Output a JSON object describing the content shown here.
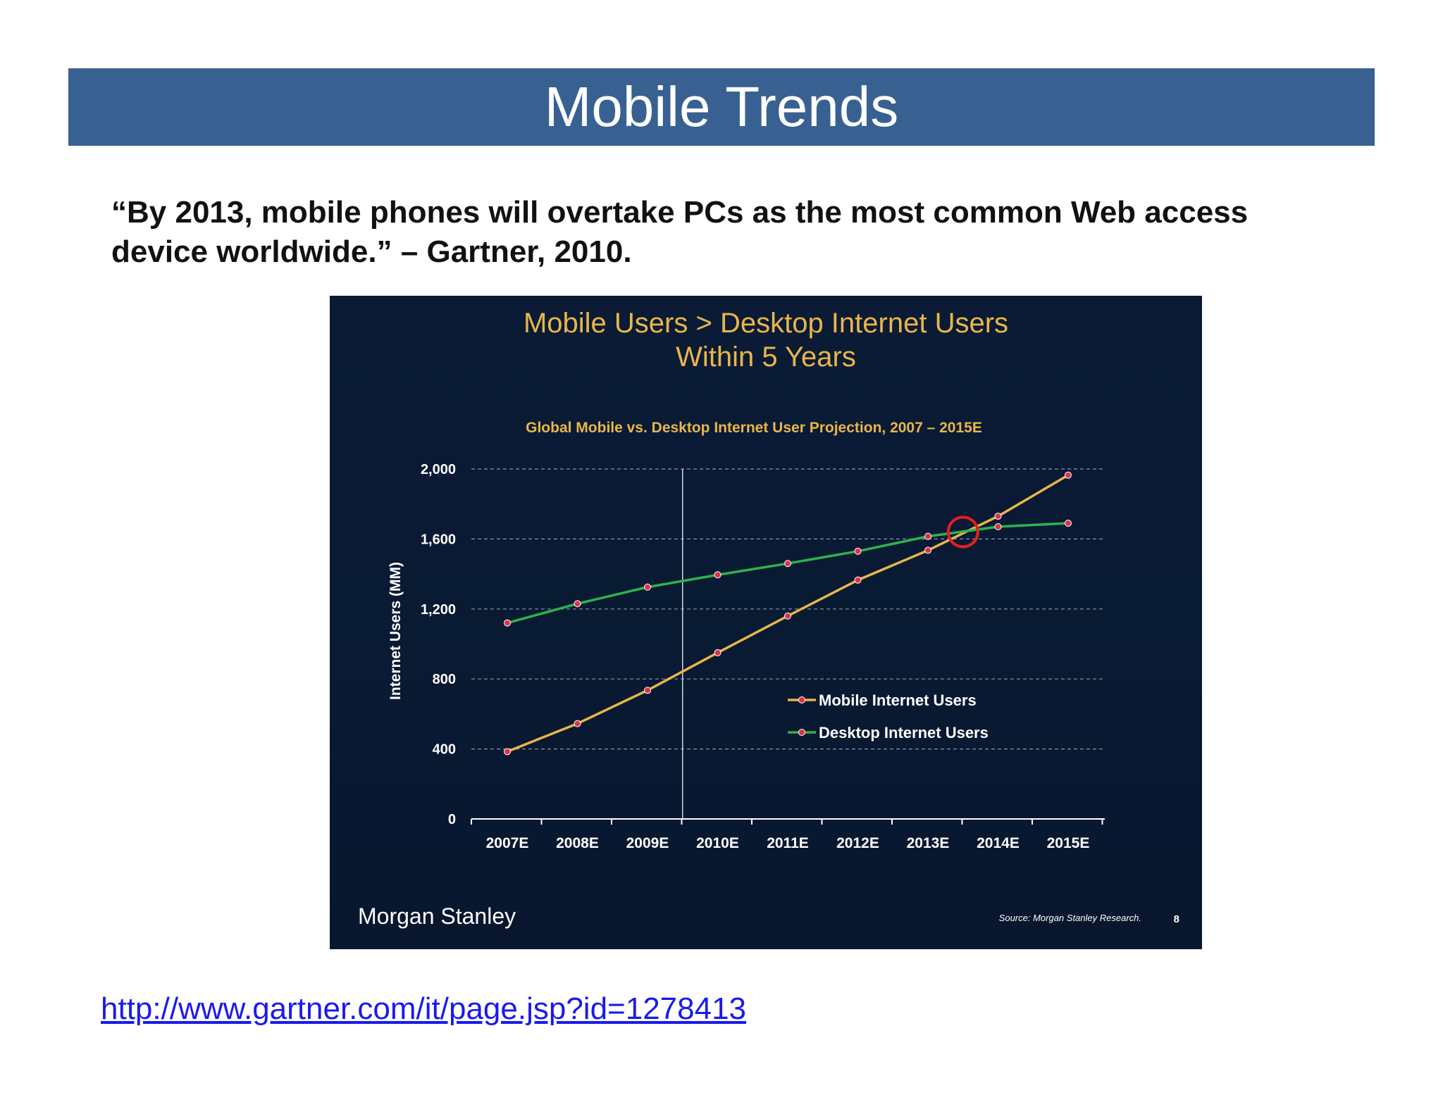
{
  "slide": {
    "title": "Mobile Trends",
    "quote": "“By 2013, mobile phones will overtake PCs as the most common Web access device worldwide.” – Gartner, 2010.",
    "link": "http://www.gartner.com/it/page.jsp?id=1278413"
  },
  "colors": {
    "title_bar": "#386192",
    "chart_bg": "#0b1b35",
    "mobile_line": "#e8b64a",
    "desktop_line": "#2db34f",
    "marker": "#e0304a",
    "heading": "#e8b64a",
    "highlight_circle": "#e32020"
  },
  "chart_data": {
    "type": "line",
    "heading": "Mobile Users > Desktop Internet Users",
    "heading2": "Within 5 Years",
    "title": "Global Mobile vs. Desktop Internet User Projection, 2007 – 2015E",
    "xlabel": "",
    "ylabel": "Internet Users (MM)",
    "ylim": [
      0,
      2000
    ],
    "yticks": [
      "0",
      "400",
      "800",
      "1,200",
      "1,600",
      "2,000"
    ],
    "ytick_values": [
      0,
      400,
      800,
      1200,
      1600,
      2000
    ],
    "categories": [
      "2007E",
      "2008E",
      "2009E",
      "2010E",
      "2011E",
      "2012E",
      "2013E",
      "2014E",
      "2015E"
    ],
    "series": [
      {
        "name": "Mobile Internet Users",
        "values": [
          385,
          545,
          735,
          950,
          1160,
          1365,
          1535,
          1730,
          1965
        ]
      },
      {
        "name": "Desktop Internet Users",
        "values": [
          1120,
          1230,
          1325,
          1395,
          1460,
          1530,
          1615,
          1670,
          1690
        ]
      }
    ],
    "grid": true,
    "legend_position": "center-right",
    "crossover_highlight": {
      "x": 2013.5,
      "y": 1640
    },
    "divider_after_category": "2009E",
    "brand": "Morgan Stanley",
    "source": "Source: Morgan Stanley Research.",
    "page_number": "8"
  }
}
